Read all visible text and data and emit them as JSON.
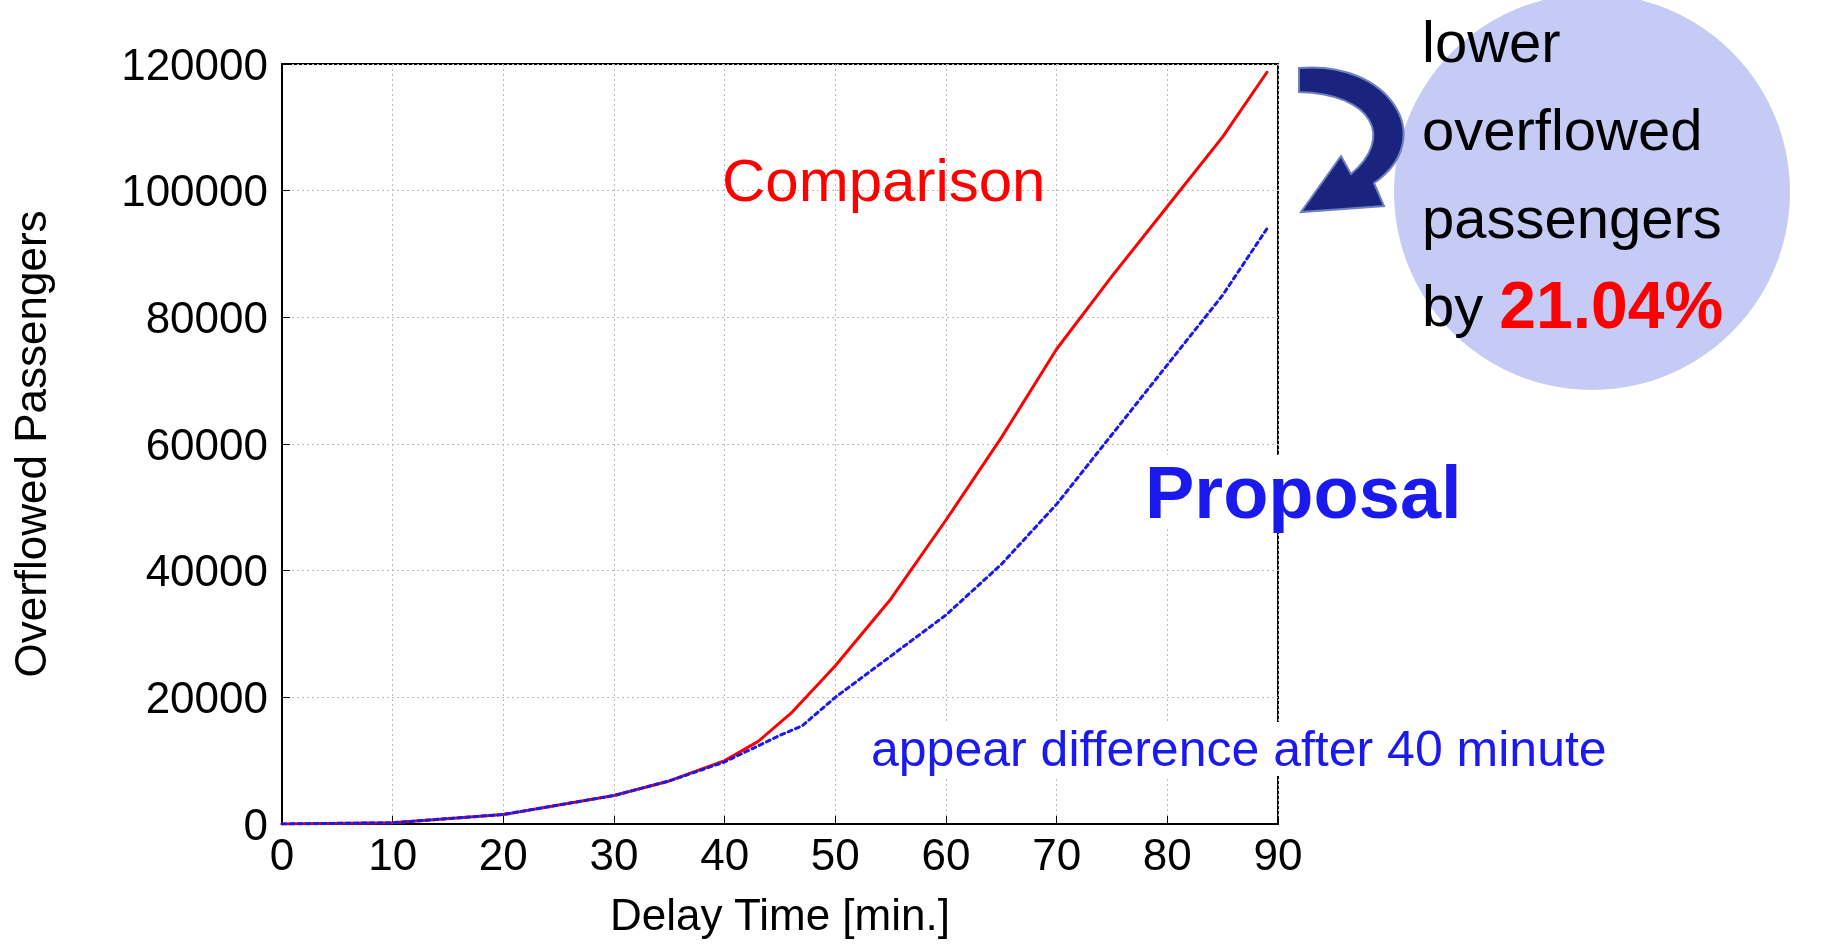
{
  "chart_data": {
    "type": "line",
    "xlabel": "Delay Time [min.]",
    "ylabel": "Overflowed Passengers",
    "xlim": [
      0,
      90
    ],
    "xticks": [
      0,
      10,
      20,
      30,
      40,
      50,
      60,
      70,
      80,
      90
    ],
    "ylim": [
      0,
      120000
    ],
    "yticks": [
      0,
      20000,
      40000,
      60000,
      80000,
      100000,
      120000
    ],
    "grid": true,
    "legend": false,
    "marker": "none",
    "series": [
      {
        "name": "Comparison",
        "color": "#ff0000",
        "line_style": "solid",
        "x": [
          0,
          10,
          20,
          30,
          35,
          40,
          43,
          46,
          50,
          55,
          60,
          65,
          70,
          75,
          80,
          85,
          89
        ],
        "values": [
          0,
          200,
          1500,
          4500,
          6800,
          10000,
          13000,
          17500,
          25000,
          35500,
          48000,
          61000,
          75000,
          86500,
          97500,
          108500,
          118700
        ]
      },
      {
        "name": "Proposal",
        "color": "#1a1aee",
        "line_style": "dotted",
        "x": [
          0,
          10,
          20,
          30,
          35,
          40,
          45,
          47,
          50,
          55,
          60,
          65,
          70,
          75,
          80,
          85,
          89
        ],
        "values": [
          0,
          200,
          1500,
          4500,
          6800,
          9800,
          14000,
          15500,
          20000,
          26500,
          33000,
          41000,
          50500,
          61500,
          72500,
          83500,
          94000
        ]
      }
    ],
    "annotations": [
      "lower overflowed passengers by",
      "21.04%",
      "appear difference after 40 minute"
    ]
  }
}
